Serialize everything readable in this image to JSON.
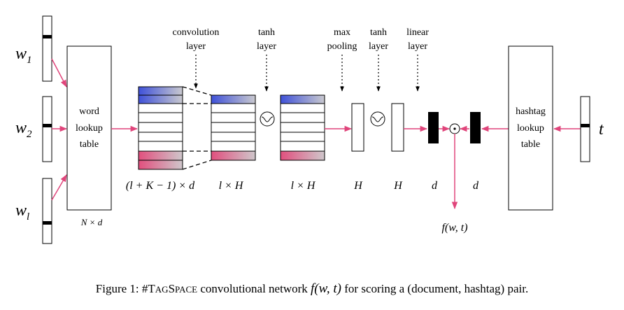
{
  "inputs": {
    "w1": "w",
    "w1_sub": "1",
    "w2": "w",
    "w2_sub": "2",
    "wl": "w",
    "wl_sub": "l",
    "t": "t"
  },
  "word_lookup": {
    "line1": "word",
    "line2": "lookup",
    "line3": "table",
    "dims": "N × d"
  },
  "hashtag_lookup": {
    "line1": "hashtag",
    "line2": "lookup",
    "line3": "table"
  },
  "layer_labels": {
    "convolution": [
      "convolution",
      "layer"
    ],
    "tanh1": [
      "tanh",
      "layer"
    ],
    "max_pooling": [
      "max",
      "pooling"
    ],
    "tanh2": [
      "tanh",
      "layer"
    ],
    "linear": [
      "linear",
      "layer"
    ]
  },
  "dimension_labels": {
    "conv_input": "(l + K − 1) × d",
    "conv_output": "l × H",
    "tanh_output": "l × H",
    "pool": "H",
    "tanh2": "H",
    "doc_embed": "d",
    "tag_embed": "d",
    "score": "f(w, t)"
  },
  "operator": "⊙",
  "caption": {
    "prefix": "Figure 1: #T",
    "smallcaps1": "AG",
    "mid": "S",
    "smallcaps2": "PACE",
    "text": " convolutional network ",
    "math": "f(w, t)",
    "suffix": " for scoring a (document, hashtag) pair."
  },
  "colors": {
    "arrow": "#e0457b",
    "blue": "#3f51d8",
    "pink": "#e14f7e",
    "black": "#000000"
  }
}
